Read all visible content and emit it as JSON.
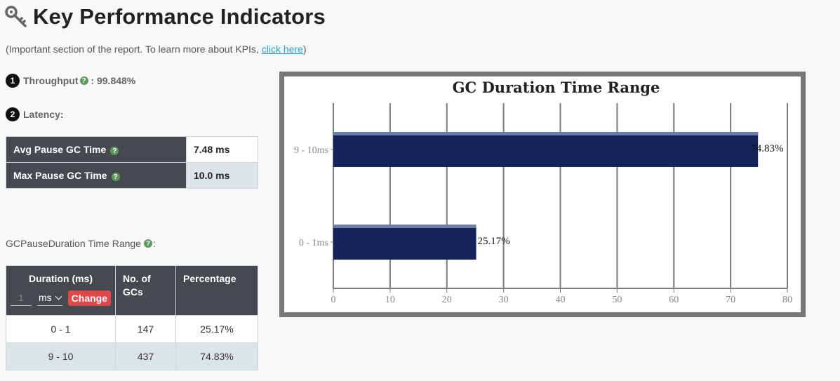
{
  "header": {
    "title": "Key Performance Indicators",
    "icon": "key-icon"
  },
  "intro": {
    "prefix": "(Important section of the report. To learn more about KPIs, ",
    "link": "click here",
    "suffix": ")"
  },
  "throughput": {
    "badge": "1",
    "label": "Throughput",
    "sep": " : ",
    "value": "99.848%"
  },
  "latency": {
    "badge": "2",
    "label": "Latency:"
  },
  "pause_table": [
    {
      "label": "Avg Pause GC Time",
      "value": "7.48 ms"
    },
    {
      "label": "Max Pause GC Time",
      "value": "10.0 ms"
    }
  ],
  "range_section": {
    "title": "GCPauseDuration Time Range",
    "colon": ":"
  },
  "range_table": {
    "headers": {
      "duration": "Duration (ms)",
      "gcs_line1": "No. of",
      "gcs_line2": "GCs",
      "percentage": "Percentage"
    },
    "controls": {
      "input_value": "1",
      "unit": "ms",
      "button": "Change"
    },
    "rows": [
      {
        "duration": "0 - 1",
        "gcs": "147",
        "percentage": "25.17%"
      },
      {
        "duration": "9 - 10",
        "gcs": "437",
        "percentage": "74.83%"
      }
    ]
  },
  "colors": {
    "header_cell": "#464a50",
    "bar": "#13255a",
    "help": "#5c9a5c",
    "button": "#e04848",
    "link": "#1a9fd6"
  },
  "chart_data": {
    "type": "bar",
    "orientation": "horizontal",
    "title": "GC Duration Time Range",
    "categories": [
      "9 - 10ms",
      "0 - 1ms"
    ],
    "values": [
      74.83,
      25.17
    ],
    "data_labels": [
      "74.83%",
      "25.17%"
    ],
    "x_ticks": [
      "0",
      "10",
      "20",
      "30",
      "40",
      "50",
      "60",
      "70",
      "80"
    ],
    "xlim": [
      0,
      80
    ],
    "grid": true
  }
}
